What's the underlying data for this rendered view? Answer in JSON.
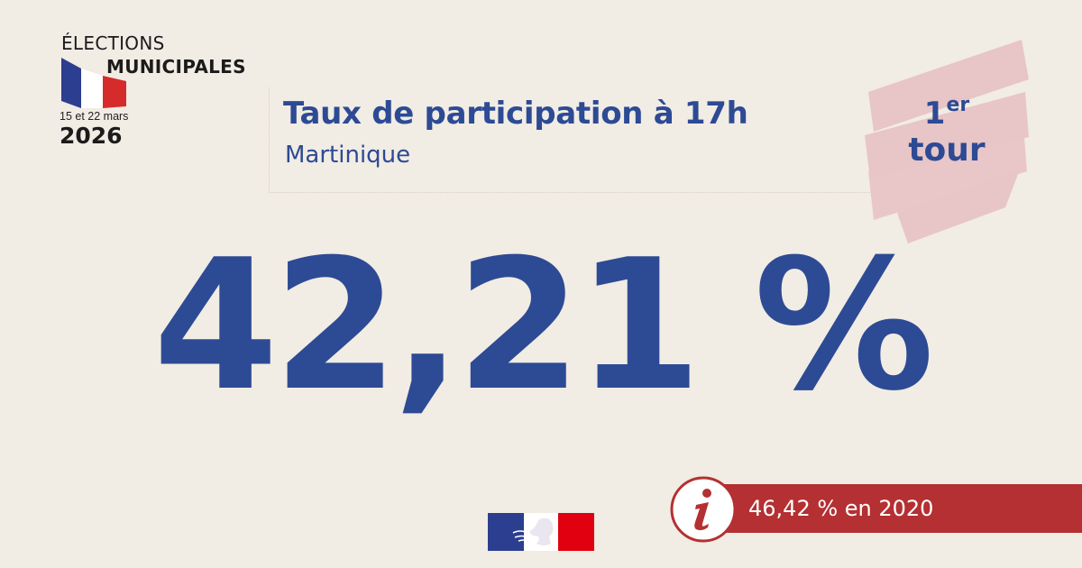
{
  "logo": {
    "word1": "ÉLECTIONS",
    "word2": "MUNICIPALES",
    "dates": "15 et 22 mars",
    "year": "2026"
  },
  "header": {
    "title": "Taux de participation à 17h",
    "subtitle": "Martinique"
  },
  "badge": {
    "number": "1",
    "superscript": "er",
    "word": "tour"
  },
  "main": {
    "value": "42,21 %"
  },
  "info": {
    "icon": "info-icon",
    "text": "46,42 % en 2020"
  },
  "colors": {
    "background": "#f1ece4",
    "primary_blue": "#2d4a94",
    "flag_blue": "#2c3e8f",
    "flag_red": "#d52b2b",
    "badge_pink": "#e8c5c6",
    "info_red": "#b43032"
  }
}
